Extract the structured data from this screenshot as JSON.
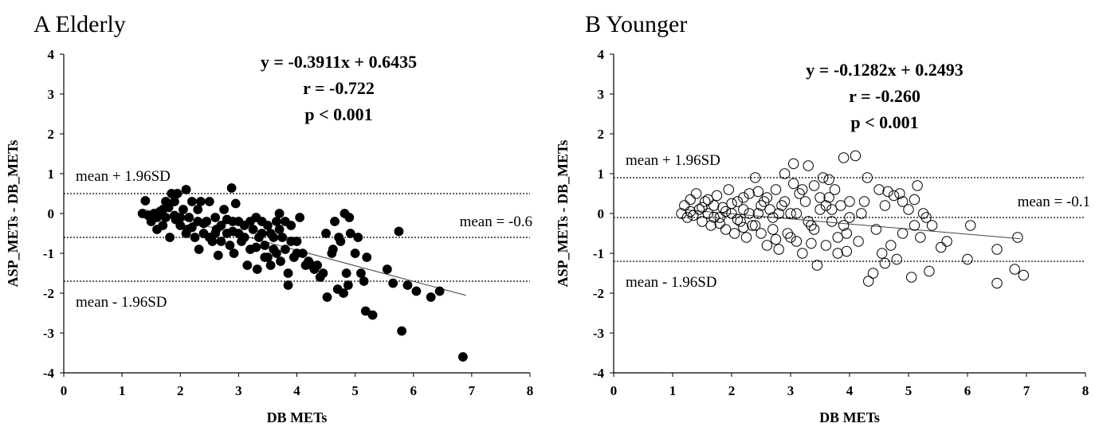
{
  "chart_data": [
    {
      "type": "scatter",
      "panel_letter": "A",
      "title": "Elderly",
      "xlabel": "DB METs",
      "ylabel": "ASP_METs - DB_METs",
      "xlim": [
        0,
        8
      ],
      "ylim": [
        -4,
        4
      ],
      "xticks": [
        "0",
        "1",
        "2",
        "3",
        "4",
        "5",
        "6",
        "7",
        "8"
      ],
      "yticks": [
        "4",
        "3",
        "2",
        "1",
        "0",
        "-1",
        "-2",
        "-3",
        "-4"
      ],
      "marker": "filled",
      "equation": [
        "y = -0.3911x + 0.6435",
        "r = -0.722",
        "p < 0.001"
      ],
      "reference_lines": [
        {
          "label": "mean + 1.96SD",
          "y": 0.5,
          "label_pos": "upper-left"
        },
        {
          "label": "mean = -0.6",
          "y": -0.6,
          "label_pos": "upper-right"
        },
        {
          "label": "mean - 1.96SD",
          "y": -1.7,
          "label_pos": "lower-left"
        }
      ],
      "regression": {
        "slope": -0.3911,
        "intercept": 0.6435,
        "x_range": [
          1.4,
          6.9
        ]
      },
      "points": [
        [
          1.35,
          0.0
        ],
        [
          1.4,
          0.32
        ],
        [
          1.45,
          -0.05
        ],
        [
          1.5,
          -0.2
        ],
        [
          1.55,
          0.0
        ],
        [
          1.6,
          -0.1
        ],
        [
          1.65,
          0.05
        ],
        [
          1.7,
          -0.3
        ],
        [
          1.75,
          -0.1
        ],
        [
          1.8,
          0.15
        ],
        [
          1.82,
          -0.6
        ],
        [
          1.85,
          0.5
        ],
        [
          1.9,
          0.3
        ],
        [
          1.92,
          -0.15
        ],
        [
          1.95,
          0.5
        ],
        [
          2.0,
          -0.3
        ],
        [
          2.05,
          0.1
        ],
        [
          2.1,
          0.6
        ],
        [
          2.12,
          -0.4
        ],
        [
          2.15,
          -0.1
        ],
        [
          2.2,
          0.3
        ],
        [
          2.25,
          -0.6
        ],
        [
          2.3,
          0.1
        ],
        [
          2.32,
          -0.9
        ],
        [
          2.35,
          0.3
        ],
        [
          2.4,
          -0.5
        ],
        [
          2.45,
          -0.2
        ],
        [
          2.5,
          0.3
        ],
        [
          2.55,
          -0.7
        ],
        [
          2.6,
          -0.1
        ],
        [
          2.62,
          -0.4
        ],
        [
          2.65,
          -1.05
        ],
        [
          2.7,
          -0.3
        ],
        [
          2.75,
          0.1
        ],
        [
          2.8,
          -0.5
        ],
        [
          2.85,
          -0.8
        ],
        [
          2.88,
          0.64
        ],
        [
          2.9,
          -0.2
        ],
        [
          2.92,
          -1.0
        ],
        [
          2.95,
          0.25
        ],
        [
          3.0,
          -0.5
        ],
        [
          3.05,
          -0.7
        ],
        [
          3.1,
          -0.3
        ],
        [
          3.15,
          -1.3
        ],
        [
          3.2,
          -0.9
        ],
        [
          3.25,
          -0.4
        ],
        [
          3.3,
          -0.1
        ],
        [
          3.32,
          -1.4
        ],
        [
          3.35,
          -0.6
        ],
        [
          3.4,
          -0.2
        ],
        [
          3.45,
          -0.8
        ],
        [
          3.5,
          -1.1
        ],
        [
          3.55,
          -0.5
        ],
        [
          3.6,
          -0.9
        ],
        [
          3.65,
          -0.2
        ],
        [
          3.7,
          0.0
        ],
        [
          3.72,
          -1.2
        ],
        [
          3.75,
          -0.6
        ],
        [
          3.8,
          -0.9
        ],
        [
          3.85,
          -1.8
        ],
        [
          3.9,
          -0.3
        ],
        [
          3.95,
          -1.1
        ],
        [
          4.0,
          -0.7
        ],
        [
          4.05,
          -0.1
        ],
        [
          4.1,
          -1.0
        ],
        [
          4.15,
          -1.3
        ],
        [
          4.2,
          -1.2
        ],
        [
          4.3,
          -1.4
        ],
        [
          4.35,
          -1.3
        ],
        [
          4.4,
          -1.6
        ],
        [
          4.45,
          -1.5
        ],
        [
          4.5,
          -0.5
        ],
        [
          4.52,
          -2.1
        ],
        [
          4.6,
          -1.0
        ],
        [
          4.62,
          -0.9
        ],
        [
          4.65,
          -0.2
        ],
        [
          4.7,
          -1.9
        ],
        [
          4.72,
          -0.6
        ],
        [
          4.75,
          -0.7
        ],
        [
          4.8,
          -2.0
        ],
        [
          4.82,
          0.0
        ],
        [
          4.85,
          -1.5
        ],
        [
          4.88,
          -1.8
        ],
        [
          4.9,
          -0.1
        ],
        [
          4.92,
          -0.5
        ],
        [
          5.0,
          -1.0
        ],
        [
          5.05,
          -0.6
        ],
        [
          5.1,
          -1.5
        ],
        [
          5.15,
          -1.7
        ],
        [
          5.18,
          -2.45
        ],
        [
          5.2,
          -1.1
        ],
        [
          5.3,
          -2.55
        ],
        [
          5.55,
          -1.4
        ],
        [
          5.65,
          -1.75
        ],
        [
          5.75,
          -0.45
        ],
        [
          5.8,
          -2.95
        ],
        [
          5.9,
          -1.8
        ],
        [
          6.05,
          -1.95
        ],
        [
          6.3,
          -2.1
        ],
        [
          6.45,
          -1.95
        ],
        [
          6.85,
          -3.6
        ],
        [
          1.6,
          -0.4
        ],
        [
          1.75,
          0.3
        ],
        [
          2.0,
          -0.1
        ],
        [
          2.2,
          -0.35
        ],
        [
          2.4,
          -0.25
        ],
        [
          2.5,
          -0.6
        ],
        [
          2.7,
          -0.7
        ],
        [
          2.8,
          -0.15
        ],
        [
          3.1,
          -0.6
        ],
        [
          3.2,
          -0.2
        ],
        [
          3.4,
          -0.5
        ],
        [
          3.5,
          -0.3
        ],
        [
          3.6,
          -0.6
        ],
        [
          3.7,
          -0.4
        ],
        [
          3.8,
          -0.2
        ],
        [
          3.9,
          -0.7
        ],
        [
          4.0,
          -1.0
        ],
        [
          3.3,
          -0.85
        ],
        [
          3.0,
          -0.2
        ],
        [
          2.9,
          -0.45
        ],
        [
          2.6,
          -0.5
        ],
        [
          2.3,
          -0.2
        ],
        [
          2.1,
          -0.5
        ],
        [
          1.9,
          -0.05
        ],
        [
          1.7,
          0.1
        ],
        [
          3.55,
          -1.3
        ],
        [
          3.65,
          -1.0
        ],
        [
          3.85,
          -1.5
        ],
        [
          4.25,
          -1.3
        ],
        [
          3.45,
          -1.1
        ]
      ]
    },
    {
      "type": "scatter",
      "panel_letter": "B",
      "title": "Younger",
      "xlabel": "DB METs",
      "ylabel": "ASP_METs - DB_METs",
      "xlim": [
        0,
        8
      ],
      "ylim": [
        -4,
        4
      ],
      "xticks": [
        "0",
        "1",
        "2",
        "3",
        "4",
        "5",
        "6",
        "7",
        "8"
      ],
      "yticks": [
        "4",
        "3",
        "2",
        "1",
        "0",
        "-1",
        "-2",
        "-3",
        "-4"
      ],
      "marker": "open",
      "equation": [
        "y = -0.1282x + 0.2493",
        "r =  -0.260",
        "p < 0.001"
      ],
      "reference_lines": [
        {
          "label": "mean + 1.96SD",
          "y": 0.9,
          "label_pos": "upper-left"
        },
        {
          "label": "mean = -0.1",
          "y": -0.1,
          "label_pos": "upper-right"
        },
        {
          "label": "mean - 1.96SD",
          "y": -1.2,
          "label_pos": "lower-left"
        }
      ],
      "regression": {
        "slope": -0.1282,
        "intercept": 0.2493,
        "x_range": [
          1.2,
          6.9
        ]
      },
      "points": [
        [
          1.15,
          0.0
        ],
        [
          1.2,
          0.2
        ],
        [
          1.25,
          -0.1
        ],
        [
          1.3,
          0.35
        ],
        [
          1.35,
          -0.05
        ],
        [
          1.4,
          0.5
        ],
        [
          1.45,
          0.1
        ],
        [
          1.5,
          -0.2
        ],
        [
          1.55,
          0.3
        ],
        [
          1.6,
          0.0
        ],
        [
          1.65,
          -0.3
        ],
        [
          1.7,
          0.2
        ],
        [
          1.75,
          0.45
        ],
        [
          1.8,
          -0.1
        ],
        [
          1.85,
          0.15
        ],
        [
          1.9,
          -0.4
        ],
        [
          1.95,
          0.6
        ],
        [
          2.0,
          0.0
        ],
        [
          2.05,
          -0.5
        ],
        [
          2.1,
          0.3
        ],
        [
          2.15,
          -0.2
        ],
        [
          2.2,
          0.1
        ],
        [
          2.25,
          -0.6
        ],
        [
          2.3,
          0.5
        ],
        [
          2.35,
          -0.3
        ],
        [
          2.4,
          0.9
        ],
        [
          2.45,
          0.0
        ],
        [
          2.5,
          -0.5
        ],
        [
          2.55,
          0.3
        ],
        [
          2.6,
          -0.8
        ],
        [
          2.65,
          0.1
        ],
        [
          2.7,
          -0.4
        ],
        [
          2.75,
          0.6
        ],
        [
          2.8,
          -0.9
        ],
        [
          2.85,
          0.2
        ],
        [
          2.9,
          1.0
        ],
        [
          2.95,
          -0.5
        ],
        [
          3.0,
          0.0
        ],
        [
          3.05,
          1.25
        ],
        [
          3.1,
          -0.7
        ],
        [
          3.15,
          0.5
        ],
        [
          3.2,
          -1.0
        ],
        [
          3.25,
          0.3
        ],
        [
          3.3,
          1.2
        ],
        [
          3.35,
          -0.3
        ],
        [
          3.4,
          0.7
        ],
        [
          3.45,
          -1.3
        ],
        [
          3.5,
          0.1
        ],
        [
          3.55,
          0.9
        ],
        [
          3.6,
          -0.8
        ],
        [
          3.65,
          0.4
        ],
        [
          3.7,
          -0.2
        ],
        [
          3.75,
          0.6
        ],
        [
          3.8,
          -1.0
        ],
        [
          3.85,
          0.2
        ],
        [
          3.9,
          1.4
        ],
        [
          3.95,
          -0.5
        ],
        [
          4.0,
          0.3
        ],
        [
          4.1,
          1.45
        ],
        [
          4.15,
          -0.7
        ],
        [
          4.2,
          0.0
        ],
        [
          4.3,
          0.9
        ],
        [
          4.32,
          -1.7
        ],
        [
          4.4,
          -1.5
        ],
        [
          4.45,
          -0.4
        ],
        [
          4.5,
          0.6
        ],
        [
          4.55,
          -1.0
        ],
        [
          4.6,
          0.2
        ],
        [
          4.65,
          0.55
        ],
        [
          4.7,
          -0.8
        ],
        [
          4.8,
          -1.15
        ],
        [
          4.85,
          0.5
        ],
        [
          4.9,
          -0.5
        ],
        [
          5.0,
          0.1
        ],
        [
          5.05,
          -1.6
        ],
        [
          5.1,
          -0.3
        ],
        [
          5.15,
          0.7
        ],
        [
          5.2,
          -0.6
        ],
        [
          5.25,
          0.0
        ],
        [
          5.35,
          -1.45
        ],
        [
          5.4,
          -0.3
        ],
        [
          5.55,
          -0.85
        ],
        [
          5.65,
          -0.7
        ],
        [
          6.0,
          -1.15
        ],
        [
          6.05,
          -0.3
        ],
        [
          6.5,
          -1.75
        ],
        [
          6.5,
          -0.9
        ],
        [
          6.8,
          -1.4
        ],
        [
          6.85,
          -0.6
        ],
        [
          6.95,
          -1.55
        ],
        [
          1.3,
          0.05
        ],
        [
          1.5,
          0.15
        ],
        [
          1.7,
          -0.1
        ],
        [
          1.9,
          0.05
        ],
        [
          2.1,
          -0.15
        ],
        [
          2.3,
          0.0
        ],
        [
          2.5,
          0.2
        ],
        [
          2.7,
          -0.1
        ],
        [
          2.9,
          0.3
        ],
        [
          3.1,
          0.0
        ],
        [
          3.3,
          -0.2
        ],
        [
          3.5,
          0.4
        ],
        [
          3.7,
          0.1
        ],
        [
          3.9,
          -0.3
        ],
        [
          2.2,
          0.4
        ],
        [
          2.4,
          -0.3
        ],
        [
          2.6,
          0.4
        ],
        [
          2.8,
          0.0
        ],
        [
          3.0,
          -0.6
        ],
        [
          3.2,
          0.6
        ],
        [
          3.4,
          -0.4
        ],
        [
          3.6,
          0.2
        ],
        [
          3.8,
          -0.6
        ],
        [
          4.0,
          -0.1
        ],
        [
          4.25,
          0.3
        ],
        [
          1.6,
          0.35
        ],
        [
          1.8,
          -0.25
        ],
        [
          2.0,
          0.25
        ],
        [
          2.2,
          -0.35
        ],
        [
          2.45,
          0.55
        ],
        [
          2.75,
          -0.65
        ],
        [
          3.05,
          0.75
        ],
        [
          3.35,
          -0.75
        ],
        [
          3.65,
          0.85
        ],
        [
          3.95,
          -0.95
        ],
        [
          4.6,
          -1.25
        ],
        [
          4.9,
          0.3
        ],
        [
          5.1,
          0.35
        ],
        [
          5.3,
          -0.1
        ],
        [
          4.75,
          0.45
        ]
      ]
    }
  ]
}
